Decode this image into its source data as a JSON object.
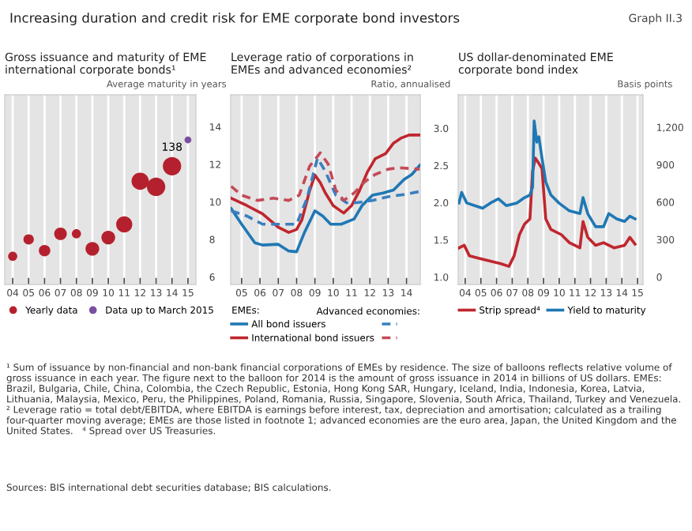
{
  "chart_data": [
    {
      "type": "bubble",
      "title": "Gross issuance and maturity of EME\ninternational corporate bonds¹",
      "ylabel": "Average maturity in years",
      "categories": [
        "04",
        "05",
        "06",
        "07",
        "08",
        "09",
        "10",
        "11",
        "12",
        "13",
        "14",
        "15"
      ],
      "series": [
        {
          "name": "Yearly data",
          "color": "#b5202e",
          "values": [
            7.1,
            8.0,
            7.4,
            8.3,
            8.3,
            7.5,
            8.1,
            8.8,
            11.1,
            10.8,
            11.9,
            null
          ],
          "sizes": [
            0.25,
            0.32,
            0.39,
            0.47,
            0.25,
            0.56,
            0.56,
            0.77,
            0.88,
            1,
            1,
            null
          ]
        },
        {
          "name": "Data up to March 2015",
          "color": "#7b4fa0",
          "values": [
            null,
            null,
            null,
            null,
            null,
            null,
            null,
            null,
            null,
            null,
            null,
            13.3
          ],
          "sizes": [
            null,
            null,
            null,
            null,
            null,
            null,
            null,
            null,
            null,
            null,
            null,
            0.14
          ]
        }
      ],
      "ylim": [
        5.6,
        15.7
      ],
      "yticks": [
        6,
        8,
        10,
        12,
        14
      ],
      "grid": "x",
      "legend": "bottom",
      "annotations": [
        "Increasing duration and credit risk for EME corporate bond investors",
        "Graph II.3",
        "¹ Sum of issuance by non-financial and non-bank financial corporations of EMEs by residence. The size of balloons reflects relative volume of gross issuance in each year. The figure next to the balloon for 2014 is the amount of gross issuance in 2014 in billions of US dollars. EMEs: Brazil, Bulgaria, Chile, China, Colombia, the Czech Republic, Estonia, Hong Kong SAR, Hungary, Iceland, India, Indonesia, Korea, Latvia, Lithuania, Malaysia, Mexico, Peru, the Philippines, Poland, Romania, Russia, Singapore, Slovenia, South Africa, Thailand, Turkey and Venezuela.   ² Leverage ratio = total debt/EBITDA, where EBITDA is earnings before interest, tax, depreciation and amortisation; calculated as a trailing four-quarter moving average; EMEs are those listed in footnote 1; advanced economies are the euro area, Japan, the United Kingdom and the United States.   ⁴ Spread over US Treasuries.",
        "Sources: BIS international debt securities database; BIS calculations.",
        {
          "text": "138",
          "x": "14",
          "y": 11.9
        }
      ]
    },
    {
      "type": "line",
      "title": "Leverage ratio of corporations in\nEMEs and advanced economies²",
      "ylabel": "Ratio, annualised",
      "legend_title": "EMEs:",
      "annotations": [
        "Advanced economies:"
      ],
      "series": [
        {
          "name": "All bond issuers",
          "color": "#1f78b4",
          "line_style": "solid",
          "x": [
            2004.43,
            2005.0,
            2005.72,
            2006.14,
            2007.0,
            2007.57,
            2008.0,
            2008.43,
            2009.0,
            2009.43,
            2009.86,
            2010.43,
            2011.14,
            2011.57,
            2012.14,
            2012.72,
            2013.29,
            2013.86,
            2014.29,
            2014.72
          ],
          "values": [
            1.92,
            1.71,
            1.46,
            1.43,
            1.44,
            1.35,
            1.34,
            1.6,
            1.89,
            1.82,
            1.71,
            1.71,
            1.78,
            1.96,
            2.1,
            2.13,
            2.17,
            2.31,
            2.38,
            2.5
          ]
        },
        {
          "name": "International bond issuers",
          "color": "#c0262e",
          "line_style": "solid",
          "x": [
            2004.43,
            2005.29,
            2006.14,
            2007.0,
            2007.57,
            2008.0,
            2008.29,
            2008.71,
            2009.0,
            2009.29,
            2009.57,
            2010.0,
            2010.57,
            2011.0,
            2011.43,
            2011.86,
            2012.29,
            2012.86,
            2013.29,
            2013.72,
            2014.14,
            2014.72
          ],
          "values": [
            2.06,
            1.96,
            1.85,
            1.67,
            1.6,
            1.64,
            1.77,
            2.16,
            2.37,
            2.27,
            2.13,
            1.96,
            1.86,
            1.96,
            2.16,
            2.41,
            2.59,
            2.66,
            2.8,
            2.87,
            2.91,
            2.91
          ]
        },
        {
          "color": "#3a7fc0",
          "line_style": "dashed",
          "x": [
            2004.43,
            2005.29,
            2006.14,
            2007.0,
            2008.0,
            2008.57,
            2009.14,
            2009.57,
            2010.14,
            2010.72,
            2011.29,
            2012.14,
            2013.0,
            2013.86,
            2014.72
          ],
          "values": [
            1.89,
            1.82,
            1.71,
            1.71,
            1.71,
            2.06,
            2.6,
            2.42,
            2.1,
            2.0,
            2.0,
            2.03,
            2.08,
            2.11,
            2.15
          ]
        },
        {
          "color": "#c44a58",
          "line_style": "dashed",
          "x": [
            2004.43,
            2005.0,
            2005.86,
            2006.72,
            2007.57,
            2008.14,
            2008.71,
            2009.29,
            2009.72,
            2010.14,
            2010.57,
            2011.14,
            2011.72,
            2012.29,
            2013.0,
            2013.57,
            2014.72
          ],
          "values": [
            2.22,
            2.1,
            2.03,
            2.06,
            2.03,
            2.1,
            2.49,
            2.67,
            2.52,
            2.17,
            2.03,
            2.13,
            2.28,
            2.38,
            2.45,
            2.47,
            2.45
          ]
        }
      ],
      "xlim": [
        2004.4,
        2014.75
      ],
      "xticks": [
        {
          "value": 2005,
          "label": "05"
        },
        {
          "value": 2006,
          "label": "06"
        },
        {
          "value": 2007,
          "label": "07"
        },
        {
          "value": 2008,
          "label": "08"
        },
        {
          "value": 2009,
          "label": "09"
        },
        {
          "value": 2010,
          "label": "10"
        },
        {
          "value": 2011,
          "label": "11"
        },
        {
          "value": 2012,
          "label": "12"
        },
        {
          "value": 2013,
          "label": "13"
        },
        {
          "value": 2014,
          "label": "14"
        }
      ],
      "ylim": [
        0.9,
        3.45
      ],
      "yticks": [
        {
          "value": 1,
          "label": "1.0"
        },
        1.5,
        {
          "value": 2,
          "label": "2.0"
        },
        2.5,
        {
          "value": 3,
          "label": "3.0"
        }
      ],
      "grid": "x",
      "legend": "bottom"
    },
    {
      "type": "line",
      "title": "US dollar-denominated EME\ncorporate bond index",
      "ylabel": "Basis points",
      "series": [
        {
          "name": "Strip spread⁴",
          "color": "#c0262e",
          "x": [
            2003.6,
            2003.94,
            2004.27,
            2004.94,
            2005.61,
            2006.28,
            2006.79,
            2007.12,
            2007.46,
            2007.79,
            2008.13,
            2008.3,
            2008.47,
            2008.7,
            2008.9,
            2009.14,
            2009.47,
            2010.14,
            2010.65,
            2011.32,
            2011.52,
            2011.82,
            2012.32,
            2012.83,
            2013.5,
            2014.17,
            2014.51,
            2014.84
          ],
          "values": [
            233,
            254,
            169,
            148,
            127,
            106,
            85,
            169,
            339,
            424,
            466,
            847,
            953,
            911,
            869,
            466,
            381,
            339,
            275,
            233,
            445,
            318,
            254,
            275,
            233,
            254,
            318,
            263
          ]
        },
        {
          "name": "Yield to maturity",
          "color": "#1f78b4",
          "x": [
            2003.6,
            2003.77,
            2004.1,
            2004.61,
            2005.11,
            2005.61,
            2006.12,
            2006.62,
            2007.29,
            2007.79,
            2008.13,
            2008.3,
            2008.4,
            2008.57,
            2008.7,
            2008.9,
            2009.14,
            2009.47,
            2009.98,
            2010.65,
            2011.32,
            2011.52,
            2011.82,
            2012.32,
            2012.83,
            2013.16,
            2013.67,
            2014.17,
            2014.51,
            2014.84
          ],
          "values": [
            593,
            678,
            593,
            572,
            551,
            593,
            627,
            572,
            593,
            636,
            657,
            720,
            1250,
            1081,
            1123,
            953,
            763,
            657,
            593,
            530,
            508,
            636,
            508,
            403,
            403,
            508,
            466,
            445,
            487,
            466
          ]
        }
      ],
      "xlim": [
        2003.55,
        2015.35
      ],
      "xticks": [
        {
          "value": 2004,
          "label": "04"
        },
        {
          "value": 2005,
          "label": "05"
        },
        {
          "value": 2006,
          "label": "06"
        },
        {
          "value": 2007,
          "label": "07"
        },
        {
          "value": 2008,
          "label": "08"
        },
        {
          "value": 2009,
          "label": "09"
        },
        {
          "value": 2010,
          "label": "10"
        },
        {
          "value": 2011,
          "label": "11"
        },
        {
          "value": 2012,
          "label": "12"
        },
        {
          "value": 2013,
          "label": "13"
        },
        {
          "value": 2014,
          "label": "14"
        },
        {
          "value": 2015,
          "label": "15"
        }
      ],
      "ylim": [
        -60,
        1460
      ],
      "yticks": [
        0,
        300,
        600,
        900,
        {
          "value": 1200,
          "label": "1,200"
        }
      ],
      "grid": "x",
      "legend": "bottom"
    }
  ]
}
